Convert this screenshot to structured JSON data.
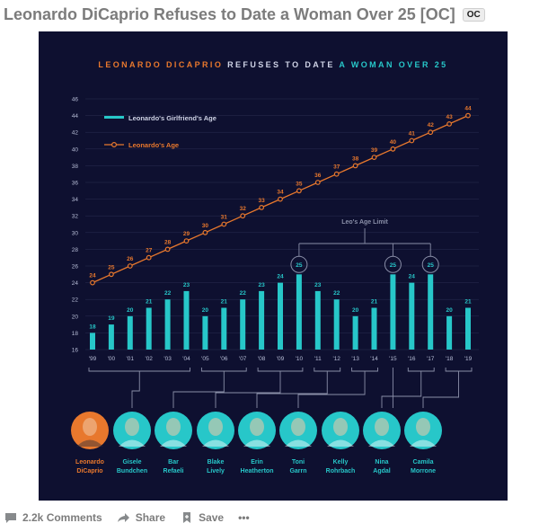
{
  "post": {
    "title": "Leonardo DiCaprio Refuses to Date a Woman Over 25 [OC]",
    "flair": "OC"
  },
  "infographic": {
    "title_parts": [
      "LEONARDO DICAPRIO",
      " REFUSES TO DATE ",
      "A WOMAN OVER 25"
    ],
    "colors": {
      "background": "#0e1030",
      "leo": "#e8782d",
      "girlfriend": "#27c7c9",
      "title_white": "#cfd3e6",
      "text": "#b7bdd6",
      "grid": "#2a2e52",
      "limit": "#8a8fa8"
    },
    "limit_label": "Leo's Age Limit",
    "people": [
      {
        "name_line1": "Leonardo",
        "name_line2": "DiCaprio",
        "color": "#e8782d"
      },
      {
        "name_line1": "Gisele",
        "name_line2": "Bundchen",
        "color": "#27c7c9"
      },
      {
        "name_line1": "Bar",
        "name_line2": "Refaeli",
        "color": "#27c7c9"
      },
      {
        "name_line1": "Blake",
        "name_line2": "Lively",
        "color": "#27c7c9"
      },
      {
        "name_line1": "Erin",
        "name_line2": "Heatherton",
        "color": "#27c7c9"
      },
      {
        "name_line1": "Toni",
        "name_line2": "Garrn",
        "color": "#27c7c9"
      },
      {
        "name_line1": "Kelly",
        "name_line2": "Rohrbach",
        "color": "#27c7c9"
      },
      {
        "name_line1": "Nina",
        "name_line2": "Agdal",
        "color": "#27c7c9"
      },
      {
        "name_line1": "Camila",
        "name_line2": "Morrone",
        "color": "#27c7c9"
      }
    ]
  },
  "chart_data": {
    "type": "bar",
    "title": "LEONARDO DICAPRIO REFUSES TO DATE A WOMAN OVER 25",
    "categories": [
      "'99",
      "'00",
      "'01",
      "'02",
      "'03",
      "'04",
      "'05",
      "'06",
      "'07",
      "'08",
      "'09",
      "'10",
      "'11",
      "'12",
      "'13",
      "'14",
      "'15",
      "'16",
      "'17",
      "'18",
      "'19"
    ],
    "ylim": [
      16,
      46
    ],
    "yticks": [
      16,
      18,
      20,
      22,
      24,
      26,
      28,
      30,
      32,
      34,
      36,
      38,
      40,
      42,
      44,
      46
    ],
    "grid": true,
    "legend_position": "top-left",
    "series": [
      {
        "name": "Leonardo's Girlfriend's Age",
        "type": "bar",
        "color": "#27c7c9",
        "values": [
          18,
          19,
          20,
          21,
          22,
          23,
          20,
          21,
          22,
          23,
          24,
          25,
          23,
          22,
          20,
          21,
          25,
          24,
          25,
          20,
          21
        ]
      },
      {
        "name": "Leonardo's Age",
        "type": "line",
        "color": "#e8782d",
        "values": [
          24,
          25,
          26,
          27,
          28,
          29,
          30,
          31,
          32,
          33,
          34,
          35,
          36,
          37,
          38,
          39,
          40,
          41,
          42,
          43,
          44
        ]
      }
    ],
    "annotations": [
      {
        "text": "Leo's Age Limit",
        "value": 25,
        "circled_categories": [
          "'10",
          "'15",
          "'17"
        ]
      }
    ]
  },
  "actions": {
    "comments_label": "2.2k Comments",
    "share_label": "Share",
    "save_label": "Save",
    "more_label": "•••"
  }
}
